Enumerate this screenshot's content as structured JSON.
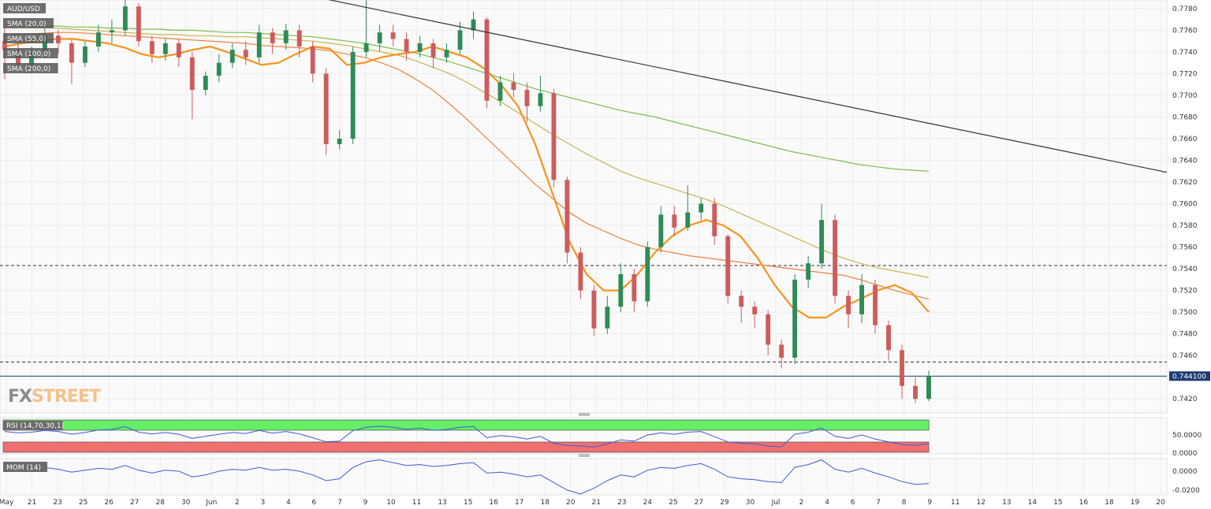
{
  "symbol": "AUD/USD",
  "watermark": {
    "left": "FX",
    "right": "STREET"
  },
  "colors": {
    "up": "#2e8b57",
    "down": "#cd5c5c",
    "sma20": "#f7931a",
    "sma55": "#f08040",
    "sma100": "#c8b450",
    "sma200": "#7cbf4c",
    "trendline": "#333333",
    "oscillator": "#3b5bdb",
    "rsi_overbought": "#66ee66",
    "rsi_oversold": "#f07070",
    "price_tag": "#1f3b73"
  },
  "legend": [
    {
      "label": "AUD/USD"
    },
    {
      "label": "SMA (20,0)"
    },
    {
      "label": "SMA (55,0)"
    },
    {
      "label": "SMA (100,0)"
    },
    {
      "label": "SMA (200,0)"
    }
  ],
  "last_price_label": "0.744100",
  "rsi": {
    "label": "RSI (14,70,30,1)",
    "ticks": [
      "50.0000",
      "0.0000"
    ]
  },
  "mom": {
    "label": "MOM (14)",
    "ticks": [
      "0.0000",
      "-0.0200"
    ]
  },
  "chart_data": {
    "type": "candlestick",
    "title": "AUD/USD",
    "x_labels": [
      "May",
      "21",
      "23",
      "25",
      "26",
      "27",
      "28",
      "30",
      "Jun",
      "2",
      "3",
      "4",
      "6",
      "7",
      "9",
      "10",
      "11",
      "13",
      "15",
      "16",
      "17",
      "18",
      "20",
      "21",
      "23",
      "24",
      "25",
      "27",
      "29",
      "30",
      "Jul",
      "2",
      "4",
      "6",
      "7",
      "8",
      "9",
      "11",
      "12",
      "13",
      "14",
      "15",
      "16",
      "18",
      "19",
      "20"
    ],
    "y_ticks": [
      "0.7780",
      "0.7760",
      "0.7740",
      "0.7720",
      "0.7700",
      "0.7680",
      "0.7660",
      "0.7640",
      "0.7620",
      "0.7600",
      "0.7580",
      "0.7560",
      "0.7540",
      "0.7520",
      "0.7500",
      "0.7480",
      "0.7460",
      "0.7420"
    ],
    "ylim": [
      0.741,
      0.7785
    ],
    "grid": true,
    "last_price": 0.7441,
    "horizontal_levels": [
      0.7543,
      0.7454
    ],
    "trendline": {
      "from": [
        0,
        0.779
      ],
      "to": [
        1,
        0.7629
      ]
    },
    "sma20": [
      0.7745,
      0.7748,
      0.775,
      0.7752,
      0.7752,
      0.775,
      0.7748,
      0.7744,
      0.7738,
      0.7735,
      0.7738,
      0.7742,
      0.7745,
      0.774,
      0.7734,
      0.7728,
      0.773,
      0.7738,
      0.7745,
      0.7743,
      0.7728,
      0.773,
      0.7735,
      0.7738,
      0.774,
      0.7745,
      0.774,
      0.7735,
      0.7725,
      0.771,
      0.769,
      0.7655,
      0.761,
      0.7565,
      0.7535,
      0.752,
      0.752,
      0.7535,
      0.7555,
      0.757,
      0.758,
      0.7585,
      0.758,
      0.757,
      0.755,
      0.7525,
      0.7505,
      0.7495,
      0.7495,
      0.7505,
      0.7512,
      0.752,
      0.7525,
      0.7518,
      0.75
    ],
    "sma55": [
      0.7755,
      0.7756,
      0.7757,
      0.7758,
      0.7758,
      0.7757,
      0.7756,
      0.7755,
      0.7754,
      0.7753,
      0.7752,
      0.7751,
      0.775,
      0.7749,
      0.7748,
      0.7746,
      0.7745,
      0.7744,
      0.7743,
      0.7741,
      0.7738,
      0.7735,
      0.773,
      0.7724,
      0.7715,
      0.7705,
      0.7692,
      0.7678,
      0.7663,
      0.7648,
      0.7633,
      0.7618,
      0.7605,
      0.7592,
      0.7582,
      0.7575,
      0.7568,
      0.7562,
      0.7558,
      0.7555,
      0.7552,
      0.755,
      0.7548,
      0.7546,
      0.7544,
      0.7542,
      0.754,
      0.7538,
      0.7536,
      0.7534,
      0.753,
      0.7525,
      0.752,
      0.7516,
      0.7512
    ],
    "sma100": [
      0.7765,
      0.7764,
      0.7763,
      0.7762,
      0.7761,
      0.776,
      0.7759,
      0.7758,
      0.7757,
      0.7756,
      0.7756,
      0.7755,
      0.7755,
      0.7754,
      0.7754,
      0.7753,
      0.7752,
      0.7751,
      0.775,
      0.7748,
      0.7746,
      0.7743,
      0.774,
      0.7737,
      0.7732,
      0.7726,
      0.772,
      0.7712,
      0.7703,
      0.7694,
      0.7684,
      0.7674,
      0.7664,
      0.7655,
      0.7646,
      0.7638,
      0.763,
      0.7624,
      0.7619,
      0.7614,
      0.7609,
      0.7604,
      0.7598,
      0.7591,
      0.7584,
      0.7577,
      0.757,
      0.7563,
      0.7556,
      0.755,
      0.7545,
      0.7541,
      0.7538,
      0.7535,
      0.7532
    ],
    "sma200": [
      0.7765,
      0.7765,
      0.7764,
      0.7764,
      0.7763,
      0.7763,
      0.7762,
      0.7762,
      0.7761,
      0.7761,
      0.776,
      0.776,
      0.7759,
      0.7758,
      0.7758,
      0.7757,
      0.7756,
      0.7755,
      0.7754,
      0.7752,
      0.775,
      0.7748,
      0.7745,
      0.7742,
      0.7739,
      0.7735,
      0.7731,
      0.7726,
      0.7721,
      0.7716,
      0.7711,
      0.7706,
      0.7702,
      0.7698,
      0.7694,
      0.769,
      0.7686,
      0.7683,
      0.768,
      0.7676,
      0.7672,
      0.7668,
      0.7664,
      0.766,
      0.7656,
      0.7652,
      0.7648,
      0.7645,
      0.7642,
      0.7639,
      0.7636,
      0.7634,
      0.7632,
      0.7631,
      0.763
    ],
    "candles": [
      [
        0.775,
        0.7742,
        0.7762,
        0.7715
      ],
      [
        0.7742,
        0.7728,
        0.7748,
        0.7722
      ],
      [
        0.7728,
        0.774,
        0.7745,
        0.772
      ],
      [
        0.774,
        0.7755,
        0.7762,
        0.7735
      ],
      [
        0.7755,
        0.7748,
        0.776,
        0.7738
      ],
      [
        0.7748,
        0.773,
        0.7752,
        0.771
      ],
      [
        0.773,
        0.7745,
        0.775,
        0.7726
      ],
      [
        0.7745,
        0.7758,
        0.7765,
        0.774
      ],
      [
        0.7758,
        0.776,
        0.777,
        0.7748
      ],
      [
        0.776,
        0.7782,
        0.7788,
        0.7755
      ],
      [
        0.7782,
        0.775,
        0.7785,
        0.7745
      ],
      [
        0.775,
        0.7738,
        0.7755,
        0.773
      ],
      [
        0.7738,
        0.7748,
        0.7752,
        0.7732
      ],
      [
        0.7748,
        0.7735,
        0.7752,
        0.7726
      ],
      [
        0.7735,
        0.7705,
        0.774,
        0.7678
      ],
      [
        0.7705,
        0.7718,
        0.7722,
        0.77
      ],
      [
        0.7718,
        0.773,
        0.7738,
        0.7712
      ],
      [
        0.773,
        0.7742,
        0.7748,
        0.7725
      ],
      [
        0.7742,
        0.7735,
        0.775,
        0.7728
      ],
      [
        0.7735,
        0.7758,
        0.7765,
        0.773
      ],
      [
        0.7758,
        0.7748,
        0.7762,
        0.7738
      ],
      [
        0.7748,
        0.776,
        0.7766,
        0.7742
      ],
      [
        0.776,
        0.7745,
        0.7765,
        0.7735
      ],
      [
        0.7745,
        0.772,
        0.775,
        0.7712
      ],
      [
        0.772,
        0.7655,
        0.7725,
        0.7645
      ],
      [
        0.7655,
        0.766,
        0.7668,
        0.765
      ],
      [
        0.766,
        0.774,
        0.7745,
        0.7655
      ],
      [
        0.774,
        0.7748,
        0.779,
        0.7735
      ],
      [
        0.7748,
        0.7758,
        0.7765,
        0.774
      ],
      [
        0.7758,
        0.7752,
        0.7765,
        0.7745
      ],
      [
        0.7752,
        0.774,
        0.7758,
        0.7732
      ],
      [
        0.774,
        0.7748,
        0.7755,
        0.7735
      ],
      [
        0.7748,
        0.7735,
        0.7752,
        0.7725
      ],
      [
        0.7735,
        0.7742,
        0.7748,
        0.773
      ],
      [
        0.7742,
        0.776,
        0.7768,
        0.7738
      ],
      [
        0.776,
        0.777,
        0.7777,
        0.7752
      ],
      [
        0.777,
        0.7695,
        0.7772,
        0.7688
      ],
      [
        0.7695,
        0.7712,
        0.7718,
        0.769
      ],
      [
        0.7712,
        0.7705,
        0.772,
        0.7698
      ],
      [
        0.7705,
        0.769,
        0.7712,
        0.7675
      ],
      [
        0.769,
        0.7702,
        0.7718,
        0.7685
      ],
      [
        0.7702,
        0.7622,
        0.7706,
        0.7615
      ],
      [
        0.7622,
        0.7555,
        0.7625,
        0.7545
      ],
      [
        0.7555,
        0.752,
        0.756,
        0.7512
      ],
      [
        0.752,
        0.7485,
        0.7525,
        0.7478
      ],
      [
        0.7485,
        0.7505,
        0.7515,
        0.748
      ],
      [
        0.7505,
        0.7535,
        0.7545,
        0.75
      ],
      [
        0.7535,
        0.751,
        0.754,
        0.75
      ],
      [
        0.751,
        0.756,
        0.7565,
        0.7505
      ],
      [
        0.756,
        0.759,
        0.7598,
        0.7555
      ],
      [
        0.759,
        0.7578,
        0.7598,
        0.757
      ],
      [
        0.7578,
        0.7592,
        0.7617,
        0.7575
      ],
      [
        0.7592,
        0.76,
        0.7605,
        0.7585
      ],
      [
        0.76,
        0.757,
        0.7605,
        0.7562
      ],
      [
        0.757,
        0.7515,
        0.7572,
        0.7508
      ],
      [
        0.7515,
        0.7505,
        0.752,
        0.749
      ],
      [
        0.7505,
        0.7498,
        0.751,
        0.7485
      ],
      [
        0.7498,
        0.747,
        0.7502,
        0.746
      ],
      [
        0.747,
        0.7458,
        0.7475,
        0.7448
      ],
      [
        0.7458,
        0.753,
        0.7535,
        0.7452
      ],
      [
        0.753,
        0.7545,
        0.7552,
        0.7522
      ],
      [
        0.7545,
        0.7585,
        0.76,
        0.754
      ],
      [
        0.7585,
        0.7515,
        0.759,
        0.7508
      ],
      [
        0.7515,
        0.7498,
        0.752,
        0.7485
      ],
      [
        0.7498,
        0.7525,
        0.7535,
        0.749
      ],
      [
        0.7525,
        0.7488,
        0.753,
        0.748
      ],
      [
        0.7488,
        0.7465,
        0.7492,
        0.7455
      ],
      [
        0.7465,
        0.7432,
        0.747,
        0.742
      ],
      [
        0.7432,
        0.742,
        0.744,
        0.7416
      ],
      [
        0.742,
        0.7441,
        0.7446,
        0.7418
      ]
    ],
    "rsi_values": [
      60,
      56,
      58,
      63,
      60,
      52,
      57,
      64,
      66,
      74,
      58,
      53,
      57,
      52,
      40,
      46,
      52,
      57,
      54,
      63,
      55,
      60,
      53,
      42,
      30,
      32,
      62,
      72,
      75,
      72,
      66,
      70,
      63,
      66,
      72,
      74,
      42,
      48,
      45,
      38,
      46,
      26,
      20,
      18,
      15,
      24,
      36,
      32,
      50,
      56,
      52,
      58,
      60,
      45,
      30,
      26,
      24,
      18,
      16,
      52,
      58,
      70,
      46,
      40,
      50,
      38,
      30,
      22,
      20,
      25
    ],
    "mom_values": [
      0.004,
      0.002,
      0.003,
      0.004,
      0.002,
      -0.001,
      0.001,
      0.003,
      0.002,
      0.006,
      0.001,
      -0.002,
      0.001,
      0.0,
      -0.006,
      -0.004,
      0.0,
      0.002,
      0.001,
      0.004,
      0.001,
      0.002,
      0.0,
      -0.004,
      -0.01,
      -0.008,
      0.004,
      0.01,
      0.012,
      0.009,
      0.006,
      0.007,
      0.005,
      0.006,
      0.008,
      0.009,
      -0.002,
      -0.001,
      -0.003,
      -0.006,
      -0.004,
      -0.012,
      -0.02,
      -0.024,
      -0.018,
      -0.01,
      -0.004,
      -0.006,
      0.001,
      0.004,
      0.003,
      0.006,
      0.008,
      0.002,
      -0.006,
      -0.008,
      -0.009,
      -0.011,
      -0.012,
      0.004,
      0.007,
      0.012,
      0.002,
      -0.001,
      0.003,
      -0.002,
      -0.006,
      -0.011,
      -0.014,
      -0.013
    ]
  }
}
